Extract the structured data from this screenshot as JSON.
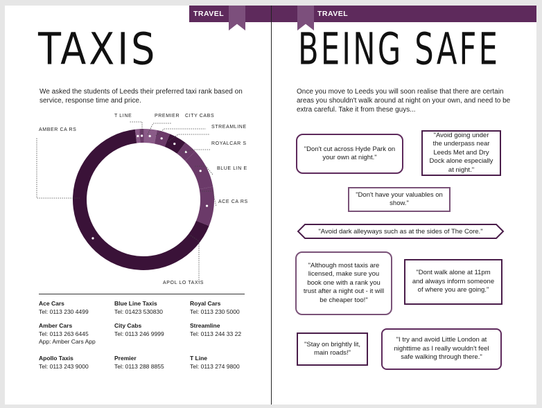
{
  "left": {
    "section": "TRAVEL",
    "title": "TAXIS",
    "intro": "We asked the students of Leeds their preferred taxi rank based on service, response time and price.",
    "chart_labels": {
      "t_line": "T LINE",
      "premier": "PREMIER",
      "city_cabs": "CITY CABS",
      "streamline": "STREAMLINE",
      "royal_cars": "ROYALCAR S",
      "blue_line": "BLUE LIN E",
      "ace_cars": "ACE CA RS",
      "apollo_taxis": "APOL LO TAXIS",
      "amber_cars": "AMBER CA RS"
    },
    "contacts": [
      {
        "name": "Ace Cars",
        "lines": [
          "Tel: 0113 230 4499"
        ]
      },
      {
        "name": "Blue Line Taxis",
        "lines": [
          "Tel: 01423 530830"
        ]
      },
      {
        "name": "Royal Cars",
        "lines": [
          "Tel: 0113 230 5000"
        ]
      },
      {
        "name": "Amber Cars",
        "lines": [
          "Tel: 0113 263 6445",
          "App: Amber Cars App"
        ]
      },
      {
        "name": "City Cabs",
        "lines": [
          "Tel: 0113 246 9999"
        ]
      },
      {
        "name": "Streamline",
        "lines": [
          "Tel: 0113 244 33 22"
        ]
      },
      {
        "name": "Apollo Taxis",
        "lines": [
          "Tel: 0113 243 9000"
        ]
      },
      {
        "name": "Premier",
        "lines": [
          "Tel: 0113 288 8855"
        ]
      },
      {
        "name": "T Line",
        "lines": [
          "Tel: 0113 274 9800"
        ]
      }
    ]
  },
  "right": {
    "section": "TRAVEL",
    "title": "BEING SAFE",
    "intro": "Once you move to Leeds you will soon realise that there are certain areas you shouldn't walk around at night on your own, and need to be extra careful. Take it from these guys...",
    "quotes": [
      "\"Don't cut across Hyde Park on your own at night.\"",
      "\"Avoid going under the underpass near Leeds Met and Dry Dock alone especially at night.\"",
      "\"Don't have your valuables on show.\"",
      "\"Avoid dark alleyways such as at the sides of The Core.\"",
      "\"Although most taxis are licensed, make sure you book one with a rank you trust after a night out - it will be cheaper too!\"",
      "\"Dont walk alone at 11pm and always inform someone of where you are going.\"",
      "\"Stay on brightly lit, main roads!\"",
      "\"I try and avoid Little London at nighttime as I really wouldn't feel safe walking through there.\""
    ]
  },
  "colors": {
    "accent": "#5e2a5c",
    "ring_dark": "#3a1238",
    "ring_mid": "#6b3a69",
    "ring_light": "#8a5b88"
  },
  "chart_data": {
    "type": "pie",
    "categories": [
      "T Line",
      "Premier",
      "City Cabs",
      "Streamline",
      "Royal Cars",
      "Blue Line",
      "Ace Cars",
      "Apollo Taxis",
      "Amber Cars"
    ],
    "values": [
      1,
      1,
      3,
      3,
      4,
      3,
      9,
      9,
      67
    ]
  }
}
